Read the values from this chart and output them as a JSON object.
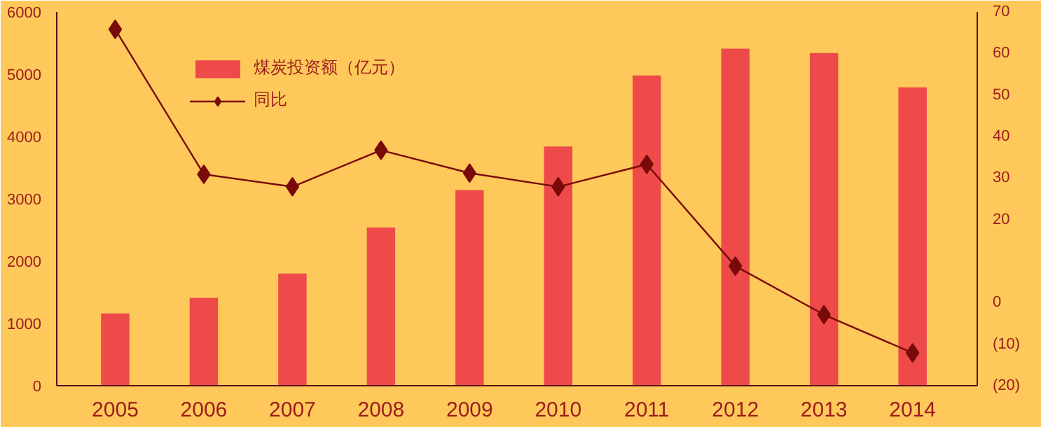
{
  "chart_data": {
    "type": "bar",
    "categories": [
      "2005",
      "2006",
      "2007",
      "2008",
      "2009",
      "2010",
      "2011",
      "2012",
      "2013",
      "2014"
    ],
    "series": [
      {
        "name": "煤炭投资额（亿元）",
        "color": "#ee4a4a",
        "values": [
          1160,
          1410,
          1800,
          2540,
          3140,
          3840,
          4980,
          5410,
          5340,
          4790
        ]
      },
      {
        "name": "同比",
        "type": "line",
        "axis": "y2",
        "color": "#7a0a0a",
        "marker": "diamond",
        "values": [
          65.8,
          30.9,
          27.9,
          36.7,
          31.2,
          27.9,
          33.3,
          8.8,
          -2.9,
          -12.1
        ]
      }
    ],
    "ylim": [
      0,
      6000
    ],
    "yticks": [
      0,
      1000,
      2000,
      3000,
      4000,
      5000,
      6000
    ],
    "y2lim": [
      -20,
      70
    ],
    "y2ticks": [
      {
        "value": -20,
        "label": "(20)"
      },
      {
        "value": -10,
        "label": "(10)"
      },
      0,
      20,
      30,
      40,
      50,
      60,
      70
    ],
    "grid": false,
    "legend": "top"
  }
}
